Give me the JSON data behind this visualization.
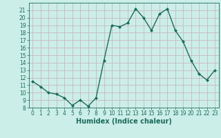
{
  "x": [
    0,
    1,
    2,
    3,
    4,
    5,
    6,
    7,
    8,
    9,
    10,
    11,
    12,
    13,
    14,
    15,
    16,
    17,
    18,
    19,
    20,
    21,
    22,
    23
  ],
  "y": [
    11.5,
    10.8,
    10.0,
    9.8,
    9.3,
    8.3,
    9.0,
    8.2,
    9.3,
    14.3,
    19.0,
    18.8,
    19.3,
    21.2,
    20.0,
    18.3,
    20.5,
    21.2,
    18.3,
    16.8,
    14.3,
    12.5,
    11.7,
    13.0
  ],
  "line_color": "#1a6b5a",
  "marker": "D",
  "markersize": 2.0,
  "linewidth": 1.0,
  "xlabel": "Humidex (Indice chaleur)",
  "xlabel_fontsize": 7,
  "bg_color": "#cceee8",
  "grid_color": "#c8b8c0",
  "tick_color": "#1a6b5a",
  "label_color": "#1a6b5a",
  "ylim": [
    8,
    22
  ],
  "xlim": [
    -0.5,
    23.5
  ],
  "yticks": [
    8,
    9,
    10,
    11,
    12,
    13,
    14,
    15,
    16,
    17,
    18,
    19,
    20,
    21
  ],
  "xticks": [
    0,
    1,
    2,
    3,
    4,
    5,
    6,
    7,
    8,
    9,
    10,
    11,
    12,
    13,
    14,
    15,
    16,
    17,
    18,
    19,
    20,
    21,
    22,
    23
  ],
  "tick_fontsize": 5.5
}
